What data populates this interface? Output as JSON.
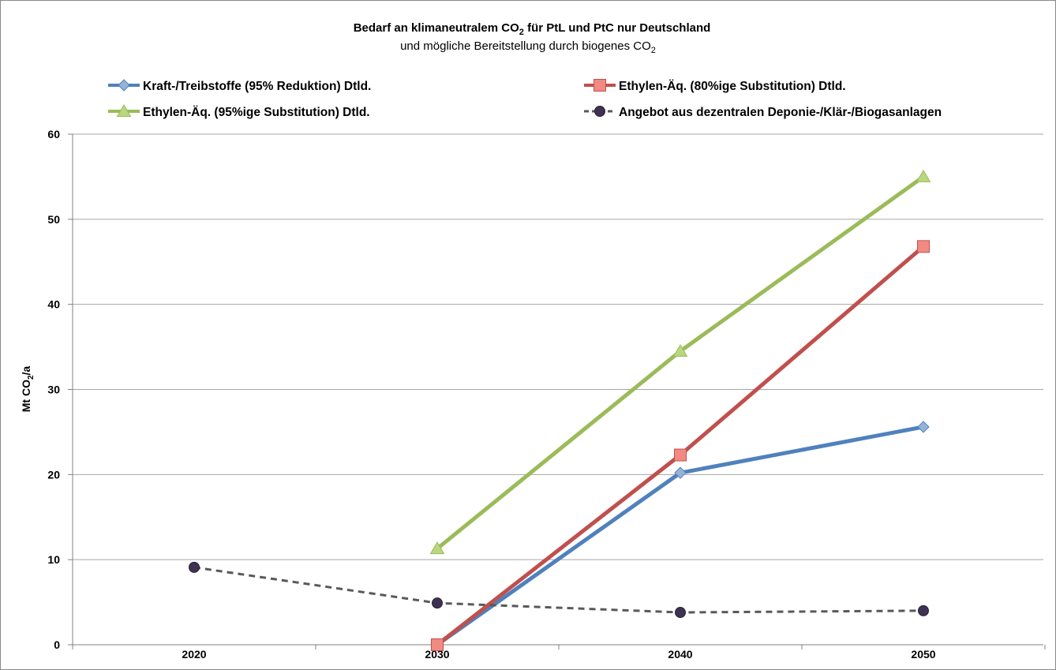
{
  "chart_data": {
    "type": "line",
    "title": {
      "main_prefix": "Bedarf an klimaneutralem CO",
      "main_sub": "2",
      "main_suffix": " für PtL und PtC nur Deutschland",
      "sub_prefix": "und mögliche Bereitstellung durch biogenes CO",
      "sub_sub": "2"
    },
    "ylabel": {
      "prefix": "Mt CO",
      "sub": "2",
      "suffix": "/a"
    },
    "xlabel": "",
    "categories": [
      "2020",
      "2030",
      "2040",
      "2050"
    ],
    "ylim": [
      0,
      60
    ],
    "yticks": [
      0,
      10,
      20,
      30,
      40,
      50,
      60
    ],
    "grid": "horizontal",
    "legend_position": "top",
    "series": [
      {
        "name": "Kraft-/Treibstoffe (95% Reduktion) Dtld.",
        "color": "#4f81bd",
        "marker": "diamond",
        "marker_fill": "#95b3d7",
        "dashed": false,
        "values": [
          null,
          0,
          20.2,
          25.6
        ]
      },
      {
        "name": "Ethylen-Äq. (80%ige Substitution) Dtld.",
        "color": "#c0504d",
        "marker": "square",
        "marker_fill": "#f08a82",
        "dashed": false,
        "values": [
          null,
          0,
          22.3,
          46.8
        ]
      },
      {
        "name": "Ethylen-Äq. (95%ige Substitution) Dtld.",
        "color": "#9bbb59",
        "marker": "triangle",
        "marker_fill": "#b9d77e",
        "dashed": false,
        "values": [
          null,
          11.3,
          34.5,
          55.0
        ]
      },
      {
        "name": "Angebot aus dezentralen Deponie-/Klär-/Biogasanlagen",
        "color": "#595959",
        "marker": "circle",
        "marker_fill": "#3f3151",
        "dashed": true,
        "values": [
          9.1,
          4.9,
          3.8,
          4.0
        ]
      }
    ]
  }
}
